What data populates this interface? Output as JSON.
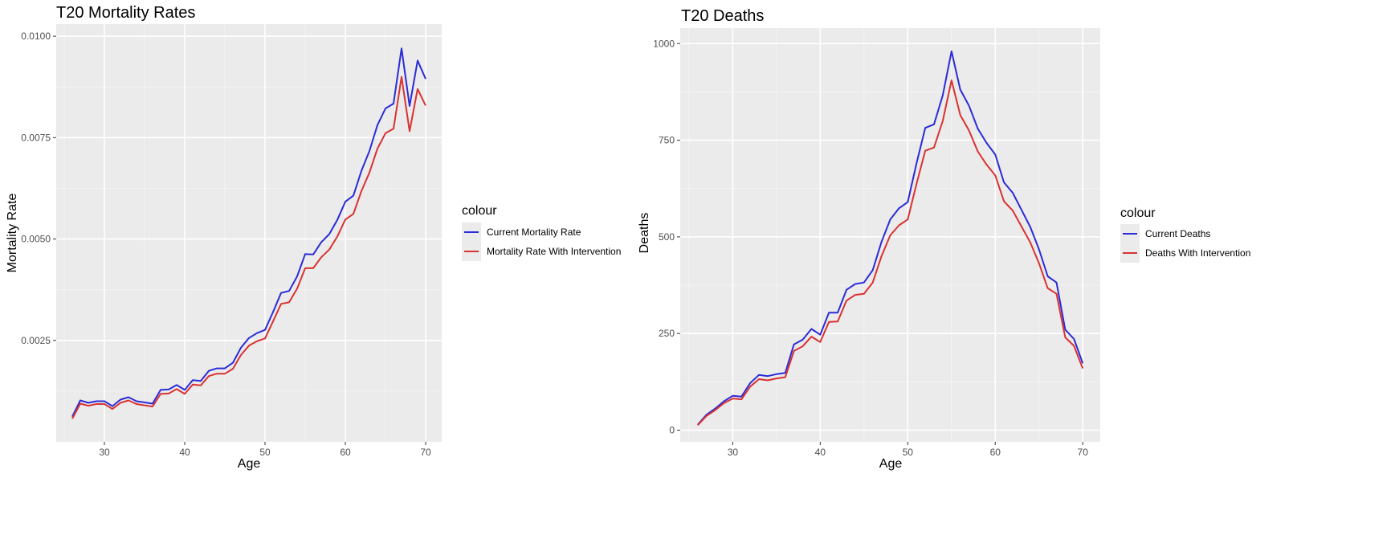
{
  "chart_data": [
    {
      "type": "line",
      "title": "T20 Mortality Rates",
      "xlabel": "Age",
      "ylabel": "Mortality Rate",
      "xlim": [
        24,
        72
      ],
      "ylim": [
        0,
        0.0103
      ],
      "x_ticks": [
        30,
        40,
        50,
        60,
        70
      ],
      "x_tick_labels": [
        "30",
        "40",
        "50",
        "60",
        "70"
      ],
      "y_ticks": [
        0.0025,
        0.005,
        0.0075,
        0.01
      ],
      "y_tick_labels": [
        "0.0025",
        "0.0050",
        "0.0075",
        "0.0100"
      ],
      "grid": true,
      "legend_title": "colour",
      "legend_position": "right",
      "x": [
        26,
        27,
        28,
        29,
        30,
        31,
        32,
        33,
        34,
        35,
        36,
        37,
        38,
        39,
        40,
        41,
        42,
        43,
        44,
        45,
        46,
        47,
        48,
        49,
        50,
        51,
        52,
        53,
        54,
        55,
        56,
        57,
        58,
        59,
        60,
        61,
        62,
        63,
        64,
        65,
        66,
        67,
        68,
        69,
        70
      ],
      "series": [
        {
          "name": "Current Mortality Rate",
          "color": "#2B2BD9",
          "values": [
            0.00062,
            0.00102,
            0.00096,
            0.001,
            0.001,
            0.00088,
            0.00104,
            0.0011,
            0.001,
            0.00097,
            0.00094,
            0.00128,
            0.00129,
            0.0014,
            0.00128,
            0.00152,
            0.0015,
            0.00175,
            0.00181,
            0.00181,
            0.00195,
            0.00232,
            0.00256,
            0.00268,
            0.00276,
            0.0032,
            0.00367,
            0.00372,
            0.00408,
            0.00463,
            0.00462,
            0.00492,
            0.00512,
            0.00547,
            0.00592,
            0.00607,
            0.00668,
            0.00717,
            0.00781,
            0.00822,
            0.00834,
            0.0097,
            0.00828,
            0.0094,
            0.00895
          ]
        },
        {
          "name": "Mortality Rate With Intervention",
          "color": "#D93232",
          "values": [
            0.00057,
            0.00094,
            0.00089,
            0.00093,
            0.00093,
            0.00081,
            0.00096,
            0.00102,
            0.00093,
            0.0009,
            0.00087,
            0.00118,
            0.00119,
            0.0013,
            0.00118,
            0.00141,
            0.00139,
            0.00162,
            0.00168,
            0.00168,
            0.0018,
            0.00214,
            0.00237,
            0.00248,
            0.00255,
            0.00297,
            0.0034,
            0.00344,
            0.00378,
            0.00428,
            0.00428,
            0.00455,
            0.00474,
            0.00506,
            0.00548,
            0.00562,
            0.00618,
            0.00664,
            0.00723,
            0.00761,
            0.00772,
            0.009,
            0.00766,
            0.0087,
            0.00829
          ]
        }
      ]
    },
    {
      "type": "line",
      "title": "T20 Deaths",
      "xlabel": "Age",
      "ylabel": "Deaths",
      "xlim": [
        24,
        72
      ],
      "ylim": [
        -30,
        1040
      ],
      "x_ticks": [
        30,
        40,
        50,
        60,
        70
      ],
      "x_tick_labels": [
        "30",
        "40",
        "50",
        "60",
        "70"
      ],
      "y_ticks": [
        0,
        250,
        500,
        750,
        1000
      ],
      "y_tick_labels": [
        "0",
        "250",
        "500",
        "750",
        "1000"
      ],
      "grid": true,
      "legend_title": "colour",
      "legend_position": "right",
      "x": [
        26,
        27,
        28,
        29,
        30,
        31,
        32,
        33,
        34,
        35,
        36,
        37,
        38,
        39,
        40,
        41,
        42,
        43,
        44,
        45,
        46,
        47,
        48,
        49,
        50,
        51,
        52,
        53,
        54,
        55,
        56,
        57,
        58,
        59,
        60,
        61,
        62,
        63,
        64,
        65,
        66,
        67,
        68,
        69,
        70
      ],
      "series": [
        {
          "name": "Current Deaths",
          "color": "#2B2BD9",
          "values": [
            14,
            40,
            56,
            75,
            89,
            87,
            122,
            143,
            140,
            145,
            148,
            222,
            234,
            262,
            247,
            304,
            304,
            363,
            378,
            382,
            414,
            487,
            545,
            574,
            590,
            690,
            782,
            791,
            866,
            980,
            881,
            839,
            780,
            743,
            713,
            641,
            614,
            570,
            526,
            468,
            398,
            382,
            260,
            236,
            173
          ]
        },
        {
          "name": "Deaths With Intervention",
          "color": "#D93232",
          "values": [
            13,
            37,
            52,
            70,
            82,
            80,
            113,
            132,
            129,
            134,
            137,
            205,
            217,
            242,
            228,
            280,
            281,
            335,
            350,
            353,
            382,
            450,
            504,
            530,
            545,
            637,
            723,
            731,
            800,
            905,
            815,
            775,
            721,
            687,
            659,
            592,
            568,
            527,
            486,
            432,
            367,
            353,
            240,
            218,
            160
          ]
        }
      ]
    }
  ]
}
